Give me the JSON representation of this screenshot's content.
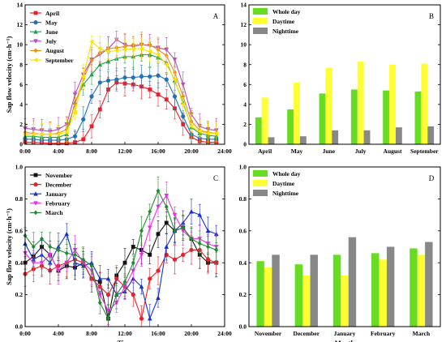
{
  "chart_data": [
    {
      "type": "line",
      "panel_label": "A",
      "ylabel": "Sap flow velocity (cm·h⁻¹)",
      "xlabel": "",
      "x": [
        "0:00",
        "1:00",
        "2:00",
        "3:00",
        "4:00",
        "5:00",
        "6:00",
        "7:00",
        "8:00",
        "9:00",
        "10:00",
        "11:00",
        "12:00",
        "13:00",
        "14:00",
        "15:00",
        "16:00",
        "17:00",
        "18:00",
        "19:00",
        "20:00",
        "21:00",
        "22:00",
        "23:00"
      ],
      "xticks": [
        "0:00",
        "4:00",
        "8:00",
        "12:00",
        "16:00",
        "20:00",
        "24:00"
      ],
      "ylim": [
        0,
        14
      ],
      "yticks": [
        "0",
        "2",
        "4",
        "6",
        "8",
        "10",
        "12",
        "14"
      ],
      "legend_position": "top-left",
      "series": [
        {
          "name": "April",
          "color": "#e8202a",
          "marker": "square",
          "values": [
            0.2,
            0.2,
            0.15,
            0.1,
            0.1,
            0.1,
            0.2,
            0.5,
            1.8,
            3.5,
            5.5,
            6.2,
            6.1,
            6.0,
            5.8,
            5.5,
            5.0,
            4.5,
            3.6,
            2.0,
            0.7,
            0.3,
            0.2,
            0.2
          ]
        },
        {
          "name": "May",
          "color": "#2272b5",
          "marker": "circle",
          "values": [
            0.5,
            0.5,
            0.4,
            0.4,
            0.4,
            0.5,
            0.8,
            2.5,
            4.8,
            6.2,
            6.4,
            6.5,
            6.7,
            6.7,
            6.8,
            6.8,
            6.9,
            6.5,
            4.8,
            2.8,
            1.0,
            0.6,
            0.5,
            0.5
          ]
        },
        {
          "name": "June",
          "color": "#1aa64a",
          "marker": "triangle",
          "values": [
            0.8,
            0.8,
            0.7,
            0.7,
            0.7,
            1.0,
            4.2,
            6.0,
            7.0,
            8.0,
            8.3,
            8.6,
            8.8,
            8.8,
            9.0,
            9.0,
            8.7,
            8.2,
            6.4,
            4.2,
            1.7,
            1.1,
            0.9,
            0.8
          ]
        },
        {
          "name": "July",
          "color": "#b04fc0",
          "marker": "triangle-down",
          "values": [
            1.6,
            1.5,
            1.4,
            1.3,
            1.5,
            2.0,
            5.0,
            7.0,
            8.5,
            9.0,
            9.6,
            10.5,
            10.0,
            9.8,
            10.0,
            9.9,
            9.7,
            9.5,
            8.5,
            6.0,
            3.0,
            1.8,
            1.5,
            1.4
          ]
        },
        {
          "name": "August",
          "color": "#f08a12",
          "marker": "diamond",
          "values": [
            1.2,
            1.1,
            1.0,
            1.0,
            1.1,
            1.5,
            4.0,
            6.6,
            8.4,
            9.2,
            9.6,
            9.7,
            9.8,
            10.0,
            10.0,
            10.0,
            9.5,
            8.9,
            7.2,
            4.8,
            2.3,
            1.4,
            1.2,
            1.1
          ]
        },
        {
          "name": "September",
          "color": "#f5e500",
          "marker": "triangle-left",
          "values": [
            1.0,
            1.0,
            1.0,
            1.0,
            1.0,
            1.2,
            3.2,
            6.8,
            10.3,
            9.6,
            9.3,
            9.4,
            9.5,
            9.6,
            9.6,
            9.3,
            9.0,
            8.0,
            6.5,
            4.0,
            1.8,
            1.3,
            1.1,
            1.1
          ]
        }
      ]
    },
    {
      "type": "bar",
      "panel_label": "B",
      "categories": [
        "April",
        "May",
        "June",
        "July",
        "August",
        "September"
      ],
      "ylim": [
        0,
        14
      ],
      "yticks": [
        "0",
        "2",
        "4",
        "6",
        "8",
        "10",
        "12",
        "14"
      ],
      "legend_position": "top-left",
      "series": [
        {
          "name": "Whole day",
          "color": "#66dd22",
          "values": [
            2.7,
            3.5,
            5.1,
            5.5,
            5.4,
            5.3
          ]
        },
        {
          "name": "Daytime",
          "color": "#ffff33",
          "values": [
            4.7,
            6.2,
            7.7,
            8.3,
            8.0,
            8.1
          ]
        },
        {
          "name": "Nighttime",
          "color": "#888888",
          "values": [
            0.7,
            0.8,
            1.4,
            1.4,
            1.7,
            1.8
          ]
        }
      ]
    },
    {
      "type": "line",
      "panel_label": "C",
      "ylabel": "Sap flow velocity (cm·h⁻¹)",
      "xlabel": "Time",
      "x": [
        "0:00",
        "1:00",
        "2:00",
        "3:00",
        "4:00",
        "5:00",
        "6:00",
        "7:00",
        "8:00",
        "9:00",
        "10:00",
        "11:00",
        "12:00",
        "13:00",
        "14:00",
        "15:00",
        "16:00",
        "17:00",
        "18:00",
        "19:00",
        "20:00",
        "21:00",
        "22:00",
        "23:00"
      ],
      "xticks": [
        "0:00",
        "4:00",
        "8:00",
        "12:00",
        "16:00",
        "20:00",
        "24:00"
      ],
      "ylim": [
        0.0,
        1.0
      ],
      "yticks": [
        "0.0",
        "0.2",
        "0.4",
        "0.6",
        "0.8",
        "1.0"
      ],
      "legend_position": "top-left",
      "series": [
        {
          "name": "November",
          "color": "#111111",
          "marker": "square",
          "values": [
            0.4,
            0.44,
            0.5,
            0.45,
            0.35,
            0.38,
            0.37,
            0.4,
            0.3,
            0.28,
            0.05,
            0.32,
            0.4,
            0.5,
            0.48,
            0.45,
            0.58,
            0.65,
            0.6,
            0.62,
            0.55,
            0.45,
            0.4,
            0.4
          ]
        },
        {
          "name": "December",
          "color": "#e8202a",
          "marker": "circle",
          "values": [
            0.33,
            0.36,
            0.38,
            0.35,
            0.38,
            0.4,
            0.42,
            0.4,
            0.3,
            0.25,
            0.2,
            0.3,
            0.25,
            0.2,
            0.05,
            0.3,
            0.35,
            0.45,
            0.42,
            0.45,
            0.48,
            0.48,
            0.42,
            0.4
          ]
        },
        {
          "name": "January",
          "color": "#1930c8",
          "marker": "triangle",
          "values": [
            0.52,
            0.42,
            0.45,
            0.4,
            0.5,
            0.58,
            0.4,
            0.38,
            0.4,
            0.3,
            0.3,
            0.2,
            0.22,
            0.3,
            0.25,
            0.05,
            0.18,
            0.5,
            0.6,
            0.65,
            0.72,
            0.7,
            0.6,
            0.58
          ]
        },
        {
          "name": "February",
          "color": "#e830e8",
          "marker": "triangle-down",
          "values": [
            0.46,
            0.4,
            0.4,
            0.45,
            0.35,
            0.4,
            0.48,
            0.4,
            0.35,
            0.2,
            0.1,
            0.15,
            0.25,
            0.35,
            0.45,
            0.62,
            0.75,
            0.82,
            0.7,
            0.6,
            0.55,
            0.55,
            0.52,
            0.5
          ]
        },
        {
          "name": "March",
          "color": "#1f8a30",
          "marker": "diamond",
          "values": [
            0.57,
            0.5,
            0.55,
            0.5,
            0.48,
            0.46,
            0.45,
            0.42,
            0.38,
            0.15,
            0.05,
            0.2,
            0.28,
            0.4,
            0.6,
            0.72,
            0.85,
            0.75,
            0.6,
            0.62,
            0.55,
            0.52,
            0.5,
            0.48
          ]
        }
      ]
    },
    {
      "type": "bar",
      "panel_label": "D",
      "xlabel": "Month",
      "categories": [
        "November",
        "December",
        "January",
        "February",
        "March"
      ],
      "ylim": [
        0.0,
        1.0
      ],
      "yticks": [
        "0.0",
        "0.2",
        "0.4",
        "0.6",
        "0.8",
        "1.0"
      ],
      "legend_position": "top-left",
      "series": [
        {
          "name": "Whole day",
          "color": "#66dd22",
          "values": [
            0.41,
            0.39,
            0.45,
            0.46,
            0.49
          ]
        },
        {
          "name": "Daytime",
          "color": "#ffff33",
          "values": [
            0.37,
            0.32,
            0.32,
            0.42,
            0.45
          ]
        },
        {
          "name": "Nighttime",
          "color": "#888888",
          "values": [
            0.45,
            0.45,
            0.56,
            0.5,
            0.53
          ]
        }
      ]
    }
  ]
}
